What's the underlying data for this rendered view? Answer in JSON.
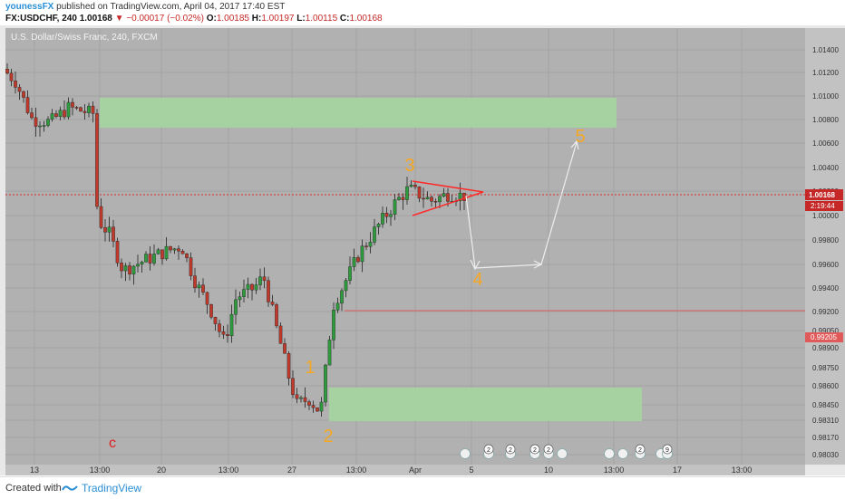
{
  "header": {
    "line1_author": "younessFX",
    "line1_rest": "published on TradingView.com, April 04, 2017 17:40 EST",
    "symbol": "FX:USDCHF, 240",
    "last": "1.00168",
    "arrow": "▼",
    "change": "−0.00017 (−0.02%)",
    "o_label": "O:",
    "o_value": "1.00185",
    "h_label": "H:",
    "h_value": "1.00197",
    "l_label": "L:",
    "l_value": "1.00115",
    "c_label": "C:",
    "c_value": "1.00168"
  },
  "chart_data": {
    "type": "candlestick",
    "title": "U.S. Dollar/Swiss Franc, 240, FXCM",
    "y_ticks": [
      "1.01400",
      "1.01200",
      "1.01000",
      "1.00800",
      "1.00600",
      "1.00400",
      "1.00200",
      "1.00000",
      "0.99800",
      "0.99600",
      "0.99400",
      "0.99200",
      "0.99050",
      "0.98900",
      "0.98750",
      "0.98600",
      "0.98450",
      "0.98310",
      "0.98170",
      "0.98030"
    ],
    "x_ticks": [
      "13",
      "13:00",
      "20",
      "13:00",
      "27",
      "13:00",
      "Apr",
      "5",
      "10",
      "13:00",
      "17",
      "13:00"
    ],
    "price_label": "1.00168",
    "countdown_label": "2:19:44",
    "level_label": "0.99205",
    "wave_labels": [
      "1",
      "2",
      "3",
      "4",
      "5"
    ],
    "extra_label": "c",
    "event_badges": [
      "2",
      "2",
      "2",
      "2",
      "2",
      "9"
    ],
    "colors": {
      "up": "#2e9c3c",
      "down": "#c0392b",
      "zone": "#a5d6a0",
      "wave": "#f5a623",
      "triangle": "#ff2a2a",
      "bg": "#b1b1b1"
    }
  },
  "footer": {
    "created": "Created with",
    "brand": "TradingView"
  }
}
